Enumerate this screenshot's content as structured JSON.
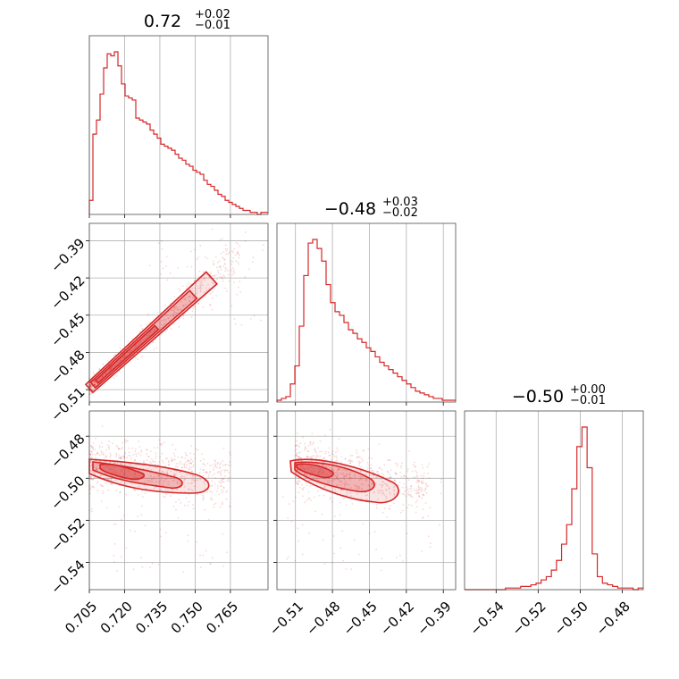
{
  "figure": {
    "type": "corner-plot",
    "color": "#d62728"
  },
  "chart_data": [
    {
      "type": "histogram",
      "panel": "diag-0",
      "title_value": "0.72",
      "title_upper": "+0.02",
      "title_lower": "−0.01",
      "xlim": [
        0.705,
        0.781
      ],
      "bin_edges": [
        0.705,
        0.781
      ],
      "counts": [
        7,
        40,
        47,
        60,
        73,
        80,
        79,
        81,
        74,
        65,
        59,
        58,
        57,
        48,
        47,
        46,
        45,
        42,
        40,
        38,
        35,
        34,
        33,
        32,
        30,
        28,
        27,
        25,
        24,
        22,
        21,
        20,
        17,
        15,
        14,
        12,
        10,
        9,
        7,
        6,
        5,
        4,
        3,
        2,
        2,
        1,
        1,
        0,
        1,
        1
      ]
    },
    {
      "type": "histogram",
      "panel": "diag-1",
      "title_value": "−0.48",
      "title_upper": "+0.03",
      "title_lower": "−0.02",
      "xlim": [
        -0.525,
        -0.38
      ],
      "bin_edges": [
        -0.525,
        -0.38
      ],
      "counts": [
        1,
        2,
        3,
        10,
        20,
        42,
        70,
        88,
        90,
        85,
        78,
        65,
        55,
        50,
        48,
        44,
        40,
        38,
        35,
        33,
        30,
        28,
        25,
        22,
        20,
        18,
        16,
        14,
        12,
        10,
        8,
        6,
        5,
        4,
        3,
        2,
        2,
        1,
        1,
        1
      ]
    },
    {
      "type": "histogram",
      "panel": "diag-2",
      "title_value": "−0.50",
      "title_upper": "+0.00",
      "title_lower": "−0.01",
      "xlim": [
        -0.555,
        -0.47
      ],
      "bin_edges": [
        -0.555,
        -0.47
      ],
      "counts": [
        0,
        0,
        0,
        0,
        0,
        0,
        0,
        0,
        1,
        1,
        1,
        2,
        2,
        3,
        4,
        6,
        8,
        12,
        18,
        28,
        40,
        62,
        88,
        100,
        75,
        22,
        8,
        4,
        3,
        2,
        1,
        1,
        1,
        0,
        1
      ]
    },
    {
      "type": "contour-scatter",
      "panel": "p10",
      "x_param": 0,
      "y_param": 1,
      "xlim": [
        0.705,
        0.781
      ],
      "ylim": [
        -0.52,
        -0.376
      ],
      "relation": {
        "kind": "linear",
        "x0": 0.705,
        "y0": -0.509,
        "x1": 0.757,
        "y1": -0.42
      }
    },
    {
      "type": "contour-scatter",
      "panel": "p20",
      "x_param": 0,
      "y_param": 2,
      "xlim": [
        0.705,
        0.781
      ],
      "ylim": [
        -0.553,
        -0.468
      ],
      "center": [
        0.722,
        -0.497
      ]
    },
    {
      "type": "contour-scatter",
      "panel": "p21",
      "x_param": 1,
      "y_param": 2,
      "xlim": [
        -0.525,
        -0.38
      ],
      "ylim": [
        -0.553,
        -0.468
      ],
      "center": [
        -0.49,
        -0.497
      ]
    }
  ],
  "axes": {
    "x0_ticks": [
      {
        "value": 0.705,
        "label": "0.705"
      },
      {
        "value": 0.72,
        "label": "0.720"
      },
      {
        "value": 0.735,
        "label": "0.735"
      },
      {
        "value": 0.75,
        "label": "0.750"
      },
      {
        "value": 0.765,
        "label": "0.765"
      }
    ],
    "x1_ticks": [
      {
        "value": -0.51,
        "label": "−0.51"
      },
      {
        "value": -0.48,
        "label": "−0.48"
      },
      {
        "value": -0.45,
        "label": "−0.45"
      },
      {
        "value": -0.42,
        "label": "−0.42"
      },
      {
        "value": -0.39,
        "label": "−0.39"
      }
    ],
    "x2_ticks": [
      {
        "value": -0.54,
        "label": "−0.54"
      },
      {
        "value": -0.52,
        "label": "−0.52"
      },
      {
        "value": -0.5,
        "label": "−0.50"
      },
      {
        "value": -0.48,
        "label": "−0.48"
      }
    ],
    "y1_ticks": [
      {
        "value": -0.39,
        "label": "−0.39"
      },
      {
        "value": -0.42,
        "label": "−0.42"
      },
      {
        "value": -0.45,
        "label": "−0.45"
      },
      {
        "value": -0.48,
        "label": "−0.48"
      },
      {
        "value": -0.51,
        "label": "−0.51"
      }
    ],
    "y2_ticks": [
      {
        "value": -0.48,
        "label": "−0.48"
      },
      {
        "value": -0.5,
        "label": "−0.50"
      },
      {
        "value": -0.52,
        "label": "−0.52"
      },
      {
        "value": -0.54,
        "label": "−0.54"
      }
    ]
  }
}
